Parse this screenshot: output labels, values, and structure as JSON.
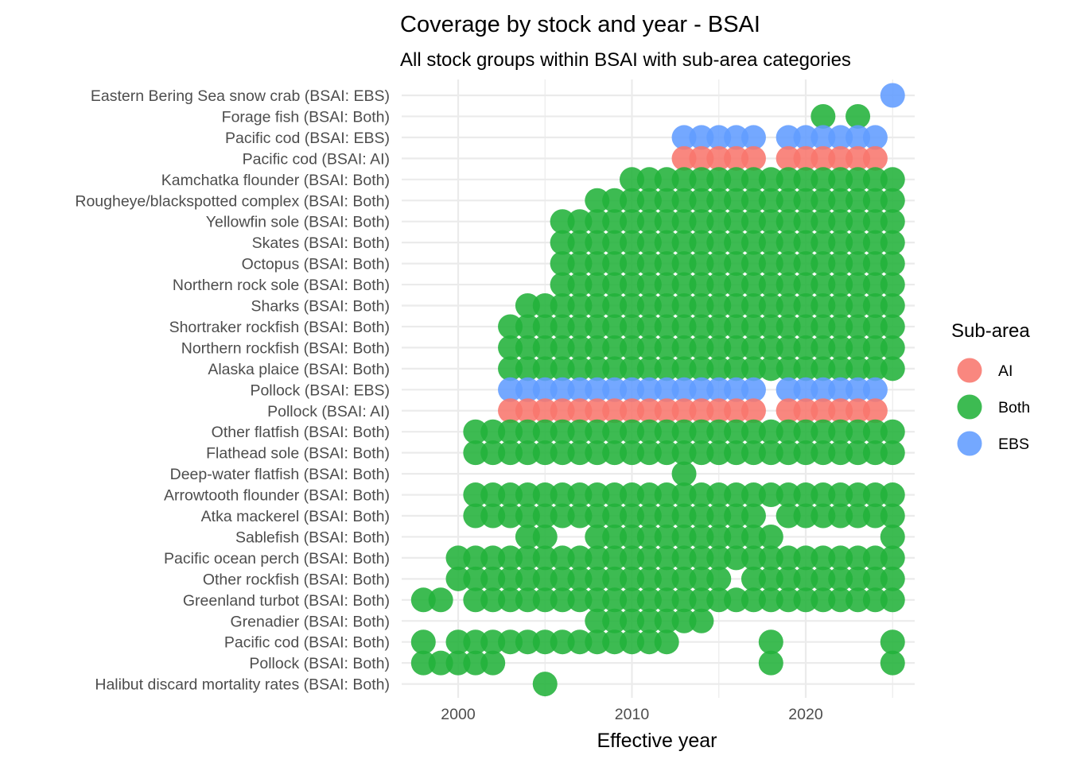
{
  "chart_data": {
    "type": "scatter",
    "title": "Coverage by stock and year - BSAI",
    "subtitle": "All stock groups within BSAI with sub-area categories",
    "xlabel": "Effective year",
    "ylabel": "",
    "xlim": [
      1997.5,
      2026.2
    ],
    "x_ticks": [
      2000,
      2010,
      2020
    ],
    "grid": true,
    "legend": {
      "title": "Sub-area",
      "position": "right",
      "entries": [
        {
          "label": "AI",
          "color": "#F8766D"
        },
        {
          "label": "Both",
          "color": "#22B23A"
        },
        {
          "label": "EBS",
          "color": "#619CFF"
        }
      ]
    },
    "stocks": [
      {
        "label": "Eastern Bering Sea snow crab (BSAI: EBS)",
        "subarea": "EBS",
        "years": [
          2025
        ]
      },
      {
        "label": "Forage fish (BSAI: Both)",
        "subarea": "Both",
        "years": [
          2021,
          2023
        ]
      },
      {
        "label": "Pacific cod (BSAI: EBS)",
        "subarea": "EBS",
        "years": [
          2013,
          2014,
          2015,
          2016,
          2017,
          2019,
          2020,
          2021,
          2022,
          2023,
          2024
        ]
      },
      {
        "label": "Pacific cod (BSAI: AI)",
        "subarea": "AI",
        "years": [
          2013,
          2014,
          2015,
          2016,
          2017,
          2019,
          2020,
          2021,
          2022,
          2023,
          2024
        ]
      },
      {
        "label": "Kamchatka flounder (BSAI: Both)",
        "subarea": "Both",
        "years": [
          2010,
          2011,
          2012,
          2013,
          2014,
          2015,
          2016,
          2017,
          2018,
          2019,
          2020,
          2021,
          2022,
          2023,
          2024,
          2025
        ]
      },
      {
        "label": "Rougheye/blackspotted complex (BSAI: Both)",
        "subarea": "Both",
        "years": [
          2008,
          2009,
          2010,
          2011,
          2012,
          2013,
          2014,
          2015,
          2016,
          2017,
          2018,
          2019,
          2020,
          2021,
          2022,
          2023,
          2024,
          2025
        ]
      },
      {
        "label": "Yellowfin sole (BSAI: Both)",
        "subarea": "Both",
        "years": [
          2006,
          2007,
          2008,
          2009,
          2010,
          2011,
          2012,
          2013,
          2014,
          2015,
          2016,
          2017,
          2018,
          2019,
          2020,
          2021,
          2022,
          2023,
          2024,
          2025
        ]
      },
      {
        "label": "Skates (BSAI: Both)",
        "subarea": "Both",
        "years": [
          2006,
          2007,
          2008,
          2009,
          2010,
          2011,
          2012,
          2013,
          2014,
          2015,
          2016,
          2017,
          2018,
          2019,
          2020,
          2021,
          2022,
          2023,
          2024,
          2025
        ]
      },
      {
        "label": "Octopus (BSAI: Both)",
        "subarea": "Both",
        "years": [
          2006,
          2007,
          2008,
          2009,
          2010,
          2011,
          2012,
          2013,
          2014,
          2015,
          2016,
          2017,
          2018,
          2019,
          2020,
          2021,
          2022,
          2023,
          2024,
          2025
        ]
      },
      {
        "label": "Northern rock sole (BSAI: Both)",
        "subarea": "Both",
        "years": [
          2006,
          2007,
          2008,
          2009,
          2010,
          2011,
          2012,
          2013,
          2014,
          2015,
          2016,
          2017,
          2018,
          2019,
          2020,
          2021,
          2022,
          2023,
          2024,
          2025
        ]
      },
      {
        "label": "Sharks (BSAI: Both)",
        "subarea": "Both",
        "years": [
          2004,
          2005,
          2006,
          2007,
          2008,
          2009,
          2010,
          2011,
          2012,
          2013,
          2014,
          2015,
          2016,
          2017,
          2018,
          2019,
          2020,
          2021,
          2022,
          2023,
          2024,
          2025
        ]
      },
      {
        "label": "Shortraker rockfish (BSAI: Both)",
        "subarea": "Both",
        "years": [
          2003,
          2004,
          2005,
          2006,
          2007,
          2008,
          2009,
          2010,
          2011,
          2012,
          2013,
          2014,
          2015,
          2016,
          2017,
          2018,
          2019,
          2020,
          2021,
          2022,
          2023,
          2024,
          2025
        ]
      },
      {
        "label": "Northern rockfish (BSAI: Both)",
        "subarea": "Both",
        "years": [
          2003,
          2004,
          2005,
          2006,
          2007,
          2008,
          2009,
          2010,
          2011,
          2012,
          2013,
          2014,
          2015,
          2016,
          2017,
          2018,
          2019,
          2020,
          2021,
          2022,
          2023,
          2024,
          2025
        ]
      },
      {
        "label": "Alaska plaice (BSAI: Both)",
        "subarea": "Both",
        "years": [
          2003,
          2004,
          2005,
          2006,
          2007,
          2008,
          2009,
          2010,
          2011,
          2012,
          2013,
          2014,
          2015,
          2016,
          2017,
          2018,
          2019,
          2020,
          2021,
          2022,
          2023,
          2024,
          2025
        ]
      },
      {
        "label": "Pollock (BSAI: EBS)",
        "subarea": "EBS",
        "years": [
          2003,
          2004,
          2005,
          2006,
          2007,
          2008,
          2009,
          2010,
          2011,
          2012,
          2013,
          2014,
          2015,
          2016,
          2017,
          2019,
          2020,
          2021,
          2022,
          2023,
          2024
        ]
      },
      {
        "label": "Pollock (BSAI: AI)",
        "subarea": "AI",
        "years": [
          2003,
          2004,
          2005,
          2006,
          2007,
          2008,
          2009,
          2010,
          2011,
          2012,
          2013,
          2014,
          2015,
          2016,
          2017,
          2019,
          2020,
          2021,
          2022,
          2023,
          2024
        ]
      },
      {
        "label": "Other flatfish (BSAI: Both)",
        "subarea": "Both",
        "years": [
          2001,
          2002,
          2003,
          2004,
          2005,
          2006,
          2007,
          2008,
          2009,
          2010,
          2011,
          2012,
          2013,
          2014,
          2015,
          2016,
          2017,
          2018,
          2019,
          2020,
          2021,
          2022,
          2023,
          2024,
          2025
        ]
      },
      {
        "label": "Flathead sole (BSAI: Both)",
        "subarea": "Both",
        "years": [
          2001,
          2002,
          2003,
          2004,
          2005,
          2006,
          2007,
          2008,
          2009,
          2010,
          2011,
          2012,
          2013,
          2014,
          2015,
          2016,
          2017,
          2018,
          2019,
          2020,
          2021,
          2022,
          2023,
          2024,
          2025
        ]
      },
      {
        "label": "Deep-water flatfish (BSAI: Both)",
        "subarea": "Both",
        "years": [
          2013
        ]
      },
      {
        "label": "Arrowtooth flounder (BSAI: Both)",
        "subarea": "Both",
        "years": [
          2001,
          2002,
          2003,
          2004,
          2005,
          2006,
          2007,
          2008,
          2009,
          2010,
          2011,
          2012,
          2013,
          2014,
          2015,
          2016,
          2017,
          2018,
          2019,
          2020,
          2021,
          2022,
          2023,
          2024,
          2025
        ]
      },
      {
        "label": "Atka mackerel (BSAI: Both)",
        "subarea": "Both",
        "years": [
          2001,
          2002,
          2003,
          2004,
          2005,
          2006,
          2007,
          2008,
          2009,
          2010,
          2011,
          2012,
          2013,
          2014,
          2015,
          2016,
          2017,
          2019,
          2020,
          2021,
          2022,
          2023,
          2024,
          2025
        ]
      },
      {
        "label": "Sablefish (BSAI: Both)",
        "subarea": "Both",
        "years": [
          2004,
          2005,
          2008,
          2009,
          2010,
          2011,
          2012,
          2013,
          2014,
          2015,
          2016,
          2017,
          2018,
          2025
        ]
      },
      {
        "label": "Pacific ocean perch (BSAI: Both)",
        "subarea": "Both",
        "years": [
          2000,
          2001,
          2002,
          2003,
          2004,
          2005,
          2006,
          2007,
          2008,
          2009,
          2010,
          2011,
          2012,
          2013,
          2014,
          2015,
          2016,
          2017,
          2018,
          2019,
          2020,
          2021,
          2022,
          2023,
          2024,
          2025
        ]
      },
      {
        "label": "Other rockfish (BSAI: Both)",
        "subarea": "Both",
        "years": [
          2000,
          2001,
          2002,
          2003,
          2004,
          2005,
          2006,
          2007,
          2008,
          2009,
          2010,
          2011,
          2012,
          2013,
          2014,
          2015,
          2017,
          2018,
          2019,
          2020,
          2021,
          2022,
          2023,
          2024,
          2025
        ]
      },
      {
        "label": "Greenland turbot (BSAI: Both)",
        "subarea": "Both",
        "years": [
          1998,
          1999,
          2001,
          2002,
          2003,
          2004,
          2005,
          2006,
          2007,
          2008,
          2009,
          2010,
          2011,
          2012,
          2013,
          2014,
          2015,
          2016,
          2017,
          2018,
          2019,
          2020,
          2021,
          2022,
          2023,
          2024,
          2025
        ]
      },
      {
        "label": "Grenadier (BSAI: Both)",
        "subarea": "Both",
        "years": [
          2008,
          2009,
          2010,
          2011,
          2012,
          2013,
          2014
        ]
      },
      {
        "label": "Pacific cod (BSAI: Both)",
        "subarea": "Both",
        "years": [
          1998,
          2000,
          2001,
          2002,
          2003,
          2004,
          2005,
          2006,
          2007,
          2008,
          2009,
          2010,
          2011,
          2012,
          2018,
          2025
        ]
      },
      {
        "label": "Pollock (BSAI: Both)",
        "subarea": "Both",
        "years": [
          1998,
          1999,
          2000,
          2001,
          2002,
          2018,
          2025
        ]
      },
      {
        "label": "Halibut discard mortality rates (BSAI: Both)",
        "subarea": "Both",
        "years": [
          2005
        ]
      }
    ]
  }
}
